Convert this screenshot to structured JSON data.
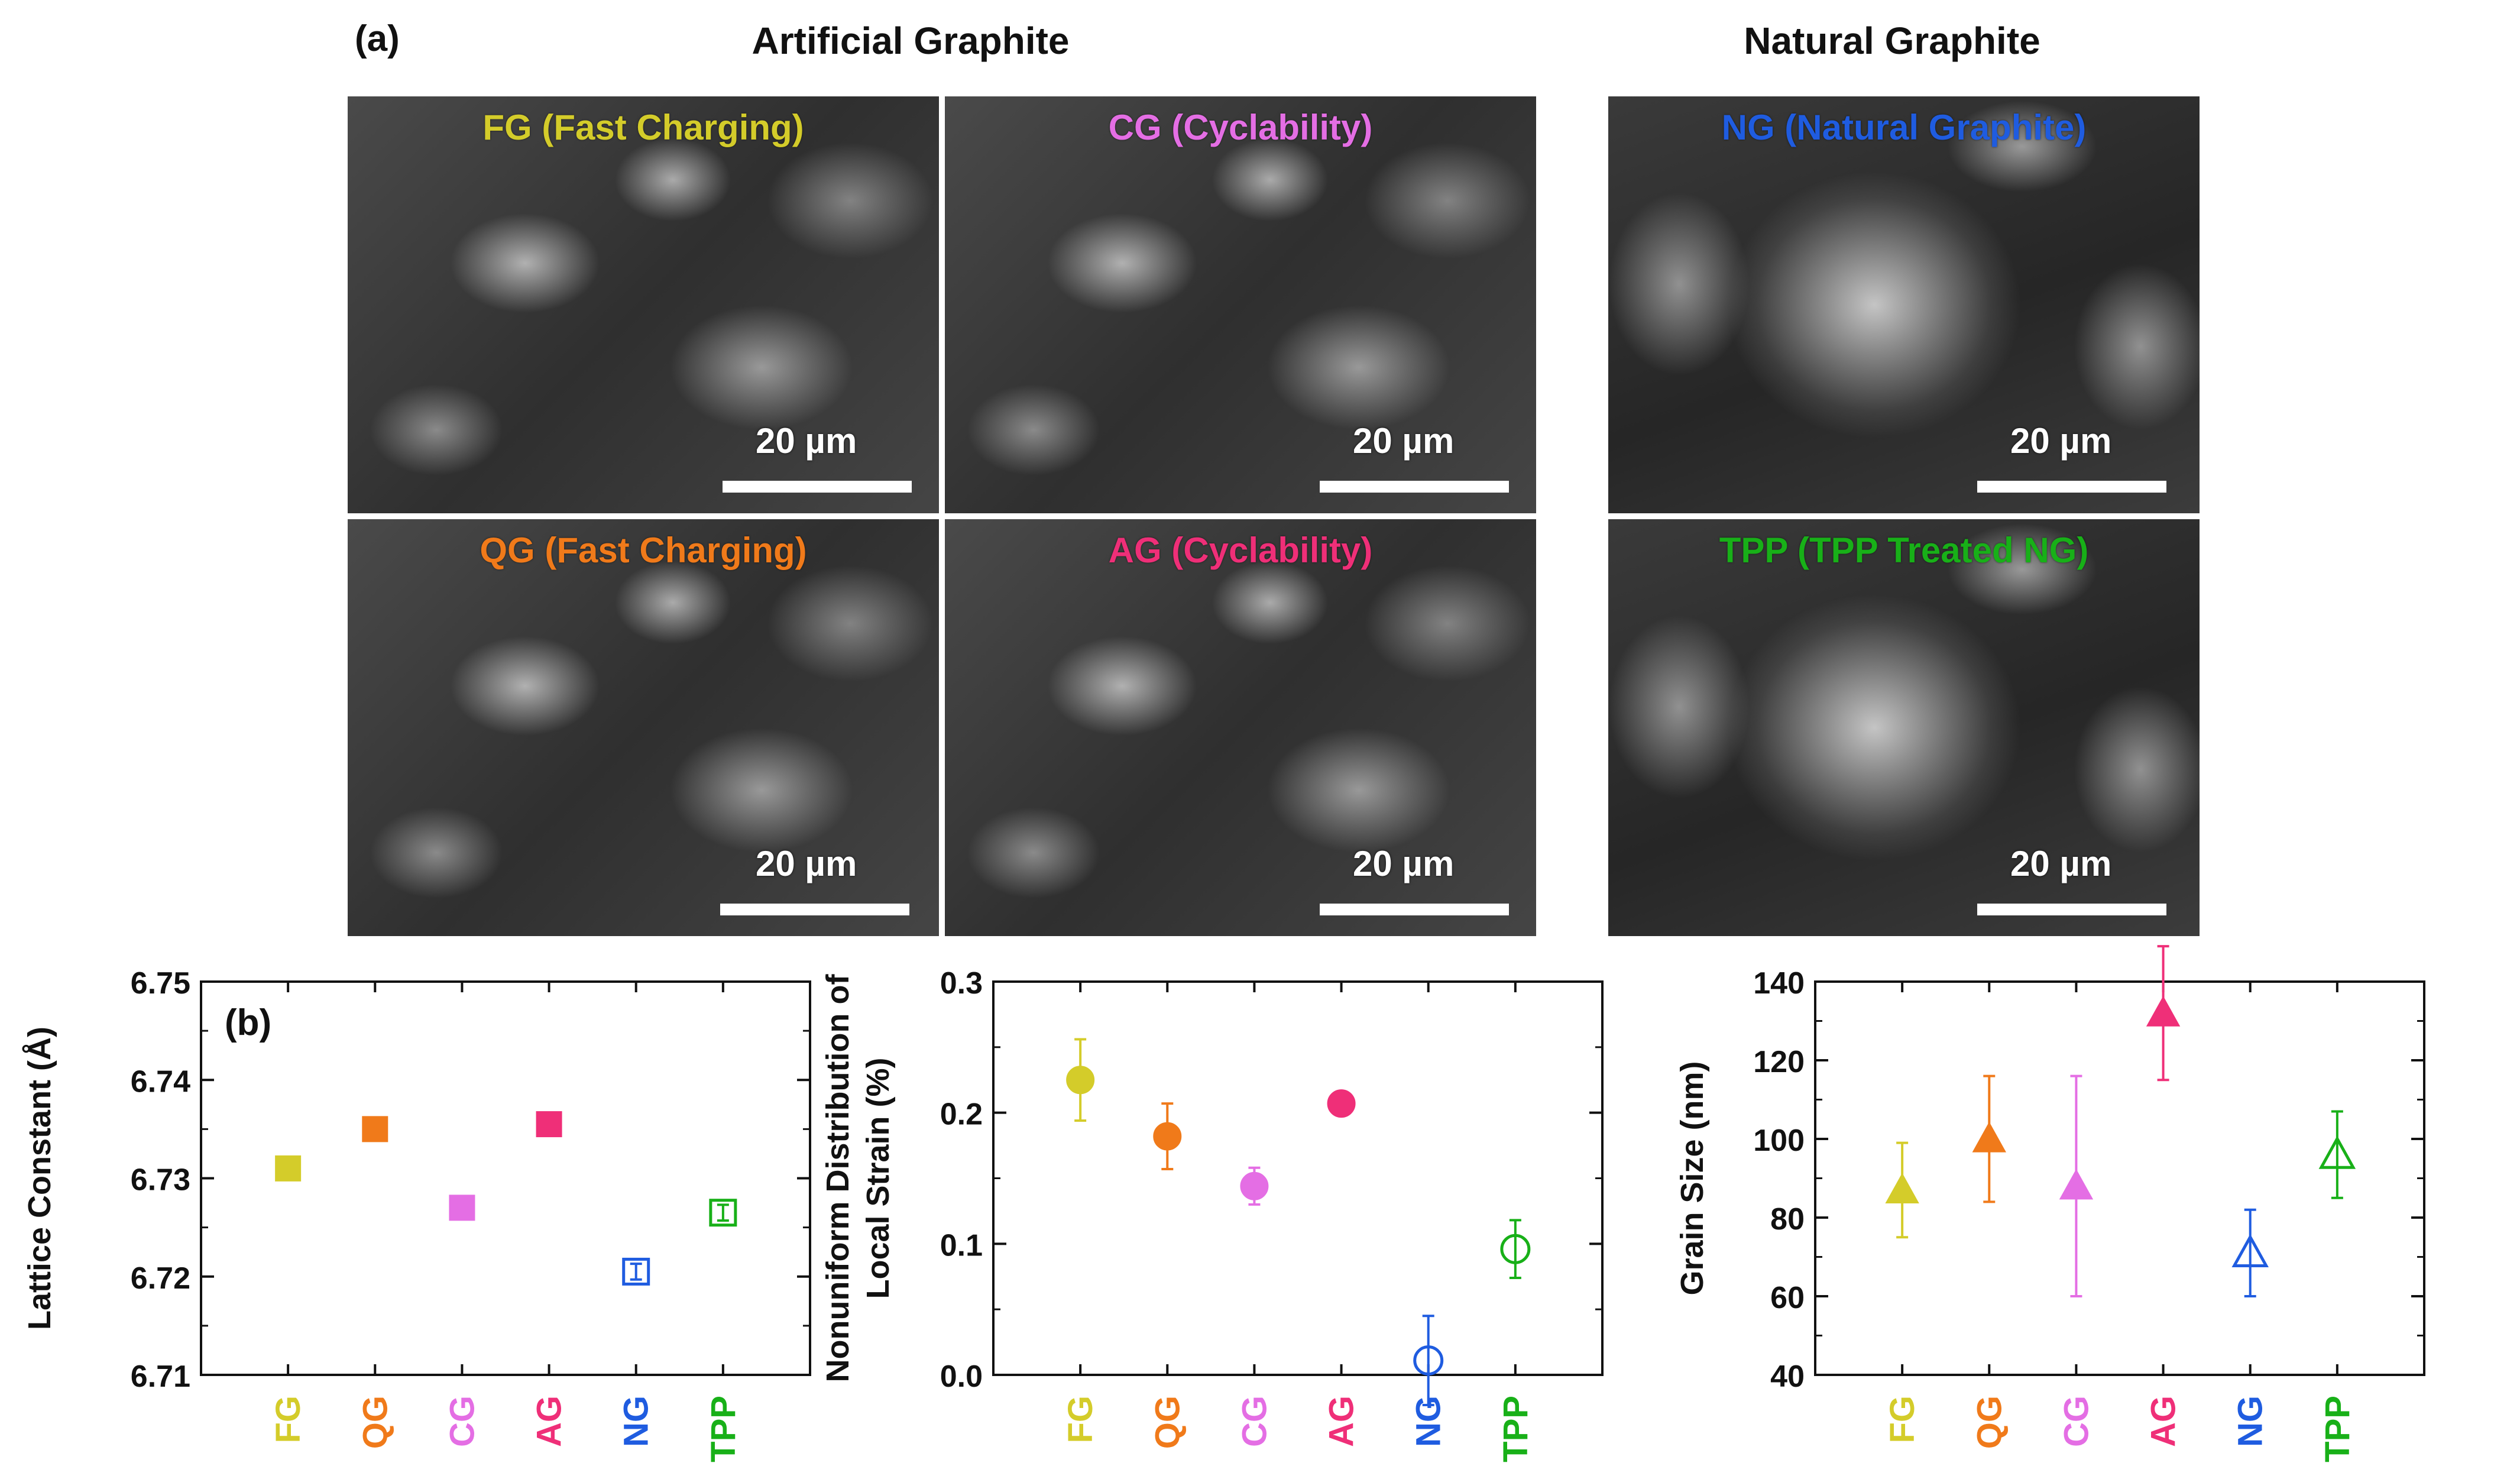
{
  "figure": {
    "panel_a_label": "(a)",
    "panel_b_label": "(b)",
    "group_titles": {
      "artificial": "Artificial Graphite",
      "natural": "Natural Graphite"
    },
    "sem_images": [
      {
        "key": "fg",
        "label": "FG (Fast Charging)",
        "color": "#d4cc2a",
        "scale": "20 µm"
      },
      {
        "key": "cg",
        "label": "CG (Cyclability)",
        "color": "#e46ee4",
        "scale": "20 µm"
      },
      {
        "key": "ng",
        "label": "NG (Natural Graphite)",
        "color": "#1f5ce0",
        "scale": "20 µm"
      },
      {
        "key": "qg",
        "label": "QG (Fast Charging)",
        "color": "#f07a1a",
        "scale": "20 µm"
      },
      {
        "key": "ag",
        "label": "AG (Cyclability)",
        "color": "#ef2f78",
        "scale": "20 µm"
      },
      {
        "key": "tpp",
        "label": "TPP (TPP Treated NG)",
        "color": "#18b018",
        "scale": "20 µm"
      }
    ]
  },
  "chart_data": [
    {
      "type": "scatter",
      "ylabel": "Lattice Constant (Å)",
      "ylim": [
        6.71,
        6.75
      ],
      "yticks": [
        "6.71",
        "6.72",
        "6.73",
        "6.74",
        "6.75"
      ],
      "marker": "square",
      "categories": [
        "FG",
        "QG",
        "CG",
        "AG",
        "NG",
        "TPP"
      ],
      "colors": [
        "#d4cc2a",
        "#f07a1a",
        "#e46ee4",
        "#ef2f78",
        "#1f5ce0",
        "#18b018"
      ],
      "filled": [
        true,
        true,
        true,
        true,
        false,
        false
      ],
      "values": [
        6.731,
        6.735,
        6.727,
        6.7355,
        6.7205,
        6.7265
      ],
      "errors": [
        0.0005,
        0.0005,
        0.0005,
        0.0005,
        0.0008,
        0.0008
      ]
    },
    {
      "type": "scatter",
      "ylabel": "Nonuniform Distribution of Local Strain (%)",
      "ylabel_lines": [
        "Nonuniform Distribution of",
        "Local Strain (%)"
      ],
      "ylim": [
        0.0,
        0.3
      ],
      "yticks": [
        "0.0",
        "0.1",
        "0.2",
        "0.3"
      ],
      "marker": "circle",
      "categories": [
        "FG",
        "QG",
        "CG",
        "AG",
        "NG",
        "TPP"
      ],
      "colors": [
        "#d4cc2a",
        "#f07a1a",
        "#e46ee4",
        "#ef2f78",
        "#1f5ce0",
        "#18b018"
      ],
      "filled": [
        true,
        true,
        true,
        true,
        false,
        false
      ],
      "values": [
        0.225,
        0.182,
        0.144,
        0.207,
        0.011,
        0.096
      ],
      "errors": [
        0.031,
        0.025,
        0.014,
        0.006,
        0.034,
        0.022
      ]
    },
    {
      "type": "scatter",
      "ylabel": "Grain Size (nm)",
      "ylim": [
        40,
        140
      ],
      "yticks": [
        "40",
        "60",
        "80",
        "100",
        "120",
        "140"
      ],
      "marker": "triangle",
      "categories": [
        "FG",
        "QG",
        "CG",
        "AG",
        "NG",
        "TPP"
      ],
      "colors": [
        "#d4cc2a",
        "#f07a1a",
        "#e46ee4",
        "#ef2f78",
        "#1f5ce0",
        "#18b018"
      ],
      "filled": [
        true,
        true,
        true,
        true,
        false,
        false
      ],
      "values": [
        87,
        100,
        88,
        132,
        71,
        96
      ],
      "errors": [
        12,
        16,
        28,
        17,
        11,
        11
      ]
    }
  ]
}
